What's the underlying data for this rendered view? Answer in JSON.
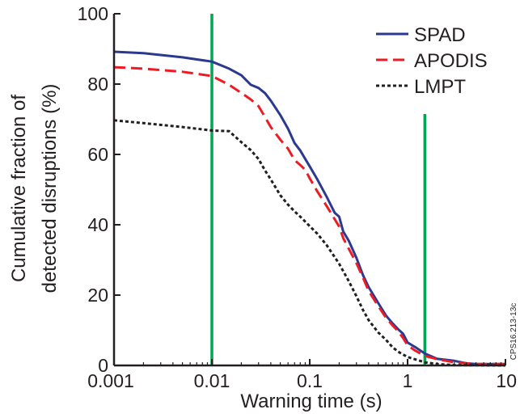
{
  "chart_data": {
    "type": "line",
    "xlabel": "Warning time (s)",
    "ylabel_lines": [
      "Cumulative fraction of",
      "detected disruptions (%)"
    ],
    "x_scale": "log",
    "xlim": [
      0.001,
      10
    ],
    "ylim": [
      0,
      100
    ],
    "x_ticks": [
      {
        "value": 0.001,
        "label": "0.001"
      },
      {
        "value": 0.01,
        "label": "0.01"
      },
      {
        "value": 0.1,
        "label": "0.1"
      },
      {
        "value": 1,
        "label": "1"
      },
      {
        "value": 10,
        "label": "10"
      }
    ],
    "y_ticks": [
      {
        "value": 0,
        "label": "0"
      },
      {
        "value": 20,
        "label": "20"
      },
      {
        "value": 40,
        "label": "40"
      },
      {
        "value": 60,
        "label": "60"
      },
      {
        "value": 80,
        "label": "80"
      },
      {
        "value": 100,
        "label": "100"
      }
    ],
    "grid": false,
    "legend_position": "top-right",
    "series": [
      {
        "name": "SPAD",
        "color": "#2b3990",
        "dash": "solid",
        "points": [
          [
            0.001,
            89.2
          ],
          [
            0.002,
            88.8
          ],
          [
            0.005,
            87.6
          ],
          [
            0.01,
            86.4
          ],
          [
            0.015,
            84.4
          ],
          [
            0.02,
            82.5
          ],
          [
            0.025,
            79.8
          ],
          [
            0.03,
            78.9
          ],
          [
            0.035,
            77.4
          ],
          [
            0.04,
            75.3
          ],
          [
            0.05,
            71.2
          ],
          [
            0.06,
            67.3
          ],
          [
            0.07,
            63.2
          ],
          [
            0.08,
            61.1
          ],
          [
            0.09,
            58.7
          ],
          [
            0.1,
            56.6
          ],
          [
            0.12,
            52.8
          ],
          [
            0.15,
            47.8
          ],
          [
            0.18,
            43.4
          ],
          [
            0.2,
            42.3
          ],
          [
            0.22,
            38.1
          ],
          [
            0.25,
            35.5
          ],
          [
            0.3,
            30.6
          ],
          [
            0.35,
            25.7
          ],
          [
            0.4,
            22.3
          ],
          [
            0.5,
            17.8
          ],
          [
            0.6,
            14.2
          ],
          [
            0.7,
            12.0
          ],
          [
            0.8,
            10.3
          ],
          [
            0.9,
            9.0
          ],
          [
            1.0,
            6.5
          ],
          [
            1.2,
            5.2
          ],
          [
            1.5,
            3.4
          ],
          [
            2.0,
            1.9
          ],
          [
            3.0,
            1.3
          ],
          [
            4.0,
            0.6
          ],
          [
            5.0,
            0.4
          ],
          [
            10.0,
            0.4
          ]
        ]
      },
      {
        "name": "APODIS",
        "color": "#ed1c24",
        "dash": "dashed",
        "points": [
          [
            0.001,
            84.8
          ],
          [
            0.002,
            84.4
          ],
          [
            0.005,
            83.5
          ],
          [
            0.01,
            82.3
          ],
          [
            0.015,
            79.8
          ],
          [
            0.02,
            77.5
          ],
          [
            0.025,
            75.6
          ],
          [
            0.03,
            73.7
          ],
          [
            0.035,
            70.6
          ],
          [
            0.04,
            67.8
          ],
          [
            0.05,
            64.2
          ],
          [
            0.06,
            61.6
          ],
          [
            0.07,
            58.4
          ],
          [
            0.08,
            57.0
          ],
          [
            0.09,
            55.6
          ],
          [
            0.1,
            53.2
          ],
          [
            0.12,
            49.4
          ],
          [
            0.15,
            45.2
          ],
          [
            0.2,
            39.5
          ],
          [
            0.22,
            36.2
          ],
          [
            0.25,
            33.2
          ],
          [
            0.3,
            29.1
          ],
          [
            0.35,
            25.0
          ],
          [
            0.4,
            21.2
          ],
          [
            0.5,
            16.9
          ],
          [
            0.6,
            13.6
          ],
          [
            0.7,
            11.4
          ],
          [
            0.8,
            9.7
          ],
          [
            0.9,
            7.8
          ],
          [
            1.0,
            5.7
          ],
          [
            1.2,
            4.2
          ],
          [
            1.5,
            2.7
          ],
          [
            2.0,
            1.8
          ],
          [
            3.0,
            0.9
          ],
          [
            5.0,
            0.4
          ],
          [
            10.0,
            0.4
          ]
        ]
      },
      {
        "name": "LMPT",
        "color": "#231f20",
        "dash": "dotted",
        "points": [
          [
            0.001,
            69.7
          ],
          [
            0.002,
            68.9
          ],
          [
            0.005,
            67.8
          ],
          [
            0.01,
            66.8
          ],
          [
            0.015,
            66.6
          ],
          [
            0.02,
            63.5
          ],
          [
            0.025,
            61.2
          ],
          [
            0.03,
            58.7
          ],
          [
            0.035,
            55.4
          ],
          [
            0.04,
            52.9
          ],
          [
            0.05,
            48.4
          ],
          [
            0.06,
            45.7
          ],
          [
            0.07,
            43.8
          ],
          [
            0.08,
            42.3
          ],
          [
            0.1,
            39.6
          ],
          [
            0.12,
            37.4
          ],
          [
            0.15,
            34.1
          ],
          [
            0.2,
            28.9
          ],
          [
            0.25,
            24.0
          ],
          [
            0.3,
            19.7
          ],
          [
            0.35,
            15.8
          ],
          [
            0.4,
            12.9
          ],
          [
            0.5,
            9.4
          ],
          [
            0.6,
            7.3
          ],
          [
            0.7,
            5.2
          ],
          [
            0.8,
            3.9
          ],
          [
            1.0,
            2.4
          ],
          [
            1.5,
            0.9
          ],
          [
            2.0,
            0.4
          ],
          [
            3.0,
            0.1
          ],
          [
            10.0,
            0.0
          ]
        ]
      }
    ],
    "vertical_markers": [
      {
        "x": 0.01,
        "y_from": 0,
        "y_to": 100,
        "color": "#00a651"
      },
      {
        "x": 1.5,
        "y_from": 0,
        "y_to": 71.5,
        "color": "#00a651"
      }
    ]
  },
  "side_label": "CPS16.213-13c"
}
